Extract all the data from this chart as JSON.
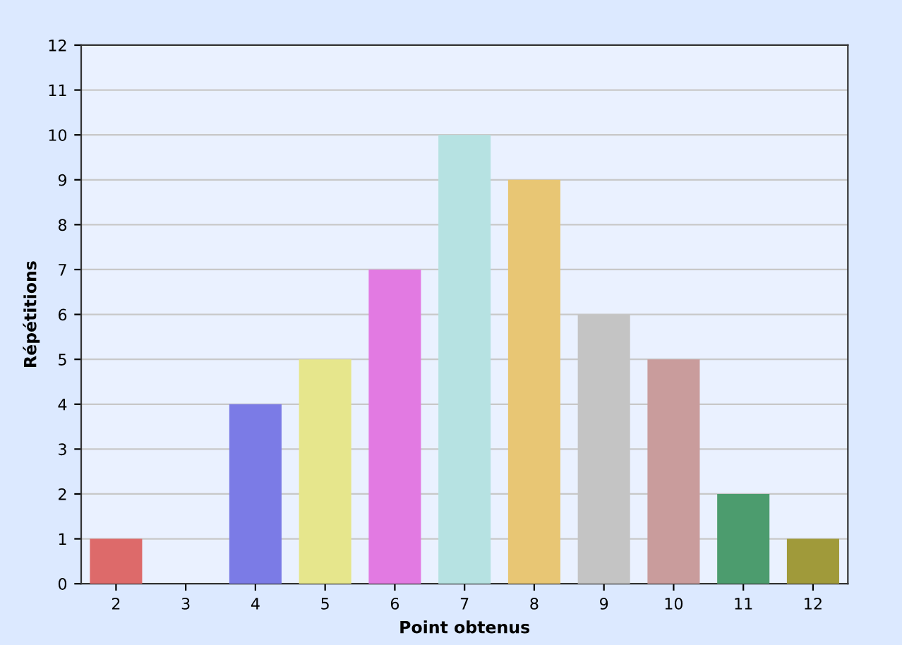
{
  "chart_data": {
    "type": "bar",
    "xlabel": "Point obtenus",
    "ylabel": "Répétitions",
    "categories": [
      "2",
      "3",
      "4",
      "5",
      "6",
      "7",
      "8",
      "9",
      "10",
      "11",
      "12"
    ],
    "values": [
      1,
      0,
      4,
      5,
      7,
      10,
      9,
      6,
      5,
      2,
      1
    ],
    "colors": [
      "#dd6a6a",
      "#cccccc",
      "#7b7be6",
      "#e6e68c",
      "#e27ae2",
      "#b6e2e2",
      "#e8c674",
      "#c4c4c4",
      "#c99c9c",
      "#4c9c6e",
      "#a09a3a"
    ],
    "ylim": [
      0,
      12
    ],
    "yticks": [
      0,
      1,
      2,
      3,
      4,
      5,
      6,
      7,
      8,
      9,
      10,
      11,
      12
    ],
    "grid": "y"
  }
}
